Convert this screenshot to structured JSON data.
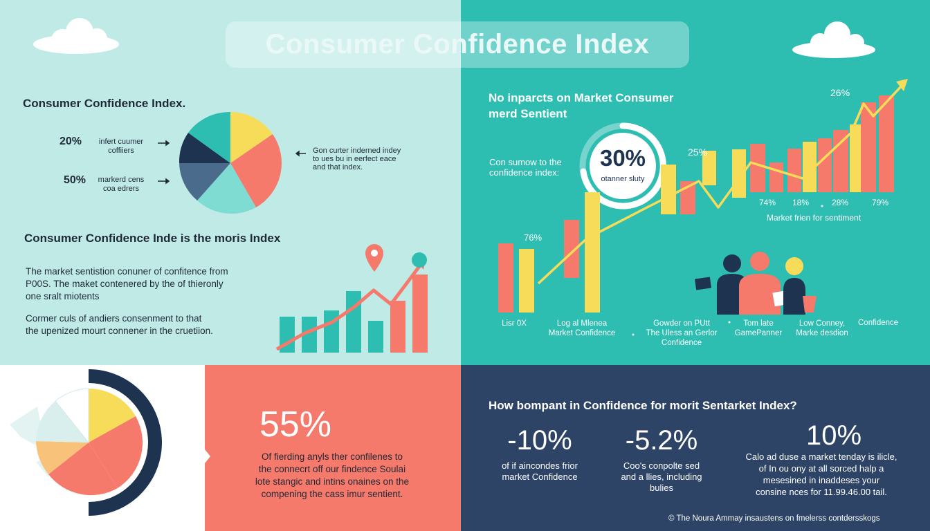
{
  "banner": {
    "title": "Consumer Confidence Index"
  },
  "left_panel": {
    "heading": "Consumer Confidence Index.",
    "stat1": {
      "value": "20%",
      "label": "infert cuumer\ncoffiiers"
    },
    "stat2": {
      "value": "50%",
      "label": "markerd cens\ncoa edrers"
    },
    "pie_note": "Gon curter inderned indey\nto ues bu in eerfect eace\nand that index.",
    "subheading": "Consumer Confidence Inde is the moris Index",
    "para1": "The market sentistion conuner of confitence from\nP00S. The maket contenered by the of thieronly\none sralt miotents",
    "para2": "Cormer culs of andiers consenment to that\nthe upenized mourt connener in the cruetiion."
  },
  "right_panel": {
    "heading": "No inparcts on Market Consumer\nmerd Sentient",
    "ring_value": "30%",
    "ring_label": "otanner sluty",
    "ring_note": "Con sumow to the\nconfidence index:",
    "pct_26": "26%",
    "pct_25": "25%",
    "pct_76": "76%",
    "bar_pcts": [
      "74%",
      "18%",
      "28%",
      "79%"
    ],
    "bar_caption": "Market frien for sentiment",
    "x_labels": [
      "Lisr 0X",
      "Log al Mlenea\nMarket Confidence",
      "Gowder on PUtt\nThe Uless an Gerlor\nConfidence",
      "Tom late\nGamePanner",
      "Low Conney,\nMarke desdion",
      "Confidence"
    ]
  },
  "bottom_mid": {
    "big_value": "55%",
    "text": "Of fierding anyls ther confilenes to\nthe connecrt off our findence Soulai\nlote stangic and intins onaines on the\ncompening the cass imur sentient."
  },
  "bottom_right": {
    "heading": "How bompant in Confidence for morit Sentarket Index?",
    "stats": [
      {
        "value": "-10%",
        "label": "of if aincondes frior\nmarket Confidence"
      },
      {
        "value": "-5.2%",
        "label": "Coo's conpolte sed\nand a llies, including\nbulies"
      },
      {
        "value": "10%",
        "label": "Calo ad duse a market tenday is ilicle,\nof In ou ony at all sorced halp a\nmesesined in inaddeses your\nconsine nces for 11.99.46.00 tail."
      }
    ],
    "footer": "The Noura Ammay insaustens on fmelerss contdersskogs",
    "footer_icon": "copyright-icon"
  },
  "colors": {
    "mint": "#bfeae6",
    "teal": "#2dbdb1",
    "coral": "#f57a6b",
    "yellow": "#f7dc5a",
    "navy": "#2d4466",
    "dark_navy": "#1e3350",
    "slate": "#4a6b8c",
    "light_teal": "#7fdcd3"
  }
}
